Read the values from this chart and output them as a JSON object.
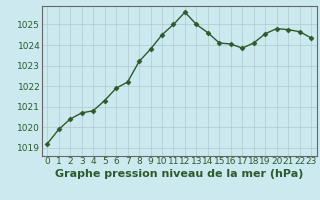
{
  "x": [
    0,
    1,
    2,
    3,
    4,
    5,
    6,
    7,
    8,
    9,
    10,
    11,
    12,
    13,
    14,
    15,
    16,
    17,
    18,
    19,
    20,
    21,
    22,
    23
  ],
  "y": [
    1019.2,
    1019.9,
    1020.4,
    1020.7,
    1020.8,
    1021.3,
    1021.9,
    1022.2,
    1023.2,
    1023.8,
    1024.5,
    1025.0,
    1025.6,
    1025.0,
    1024.6,
    1024.1,
    1024.05,
    1023.85,
    1024.1,
    1024.55,
    1024.8,
    1024.75,
    1024.65,
    1024.35
  ],
  "line_color": "#2d5a2d",
  "marker": "D",
  "marker_size": 2.5,
  "bg_color": "#cce9f0",
  "grid_color": "#b0c8cc",
  "xlabel": "Graphe pression niveau de la mer (hPa)",
  "xlabel_fontsize": 8,
  "yticks": [
    1019,
    1020,
    1021,
    1022,
    1023,
    1024,
    1025
  ],
  "ylim": [
    1018.6,
    1025.9
  ],
  "xlim": [
    -0.5,
    23.5
  ],
  "xticks": [
    0,
    1,
    2,
    3,
    4,
    5,
    6,
    7,
    8,
    9,
    10,
    11,
    12,
    13,
    14,
    15,
    16,
    17,
    18,
    19,
    20,
    21,
    22,
    23
  ],
  "tick_fontsize": 6.5,
  "tick_color": "#2d5a2d",
  "spine_color": "#666666",
  "linewidth": 1.0
}
